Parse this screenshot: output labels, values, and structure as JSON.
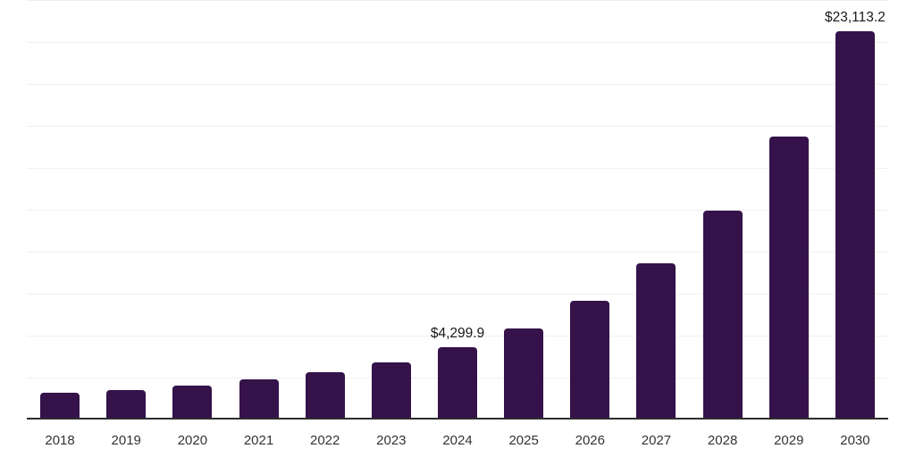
{
  "chart_data": {
    "type": "bar",
    "title": "",
    "xlabel": "",
    "ylabel": "",
    "categories": [
      "2018",
      "2019",
      "2020",
      "2021",
      "2022",
      "2023",
      "2024",
      "2025",
      "2026",
      "2027",
      "2028",
      "2029",
      "2030"
    ],
    "values": [
      1600,
      1760,
      2020,
      2390,
      2820,
      3400,
      4299.9,
      5430,
      7070,
      9310,
      12460,
      16860,
      23113.2
    ],
    "annotations": [
      {
        "category": "2024",
        "text": "$4,299.9"
      },
      {
        "category": "2030",
        "text": "$23,113.2"
      }
    ],
    "ylim": [
      0,
      25000
    ],
    "grid_step": 2500,
    "grid": true,
    "legend": false,
    "colors": {
      "bar": "#35124a",
      "axis": "#2d2d2d",
      "gridline": "#f0f0f0",
      "tick_label": "#333333",
      "annotation": "#1a1a1a",
      "background": "#ffffff"
    }
  }
}
